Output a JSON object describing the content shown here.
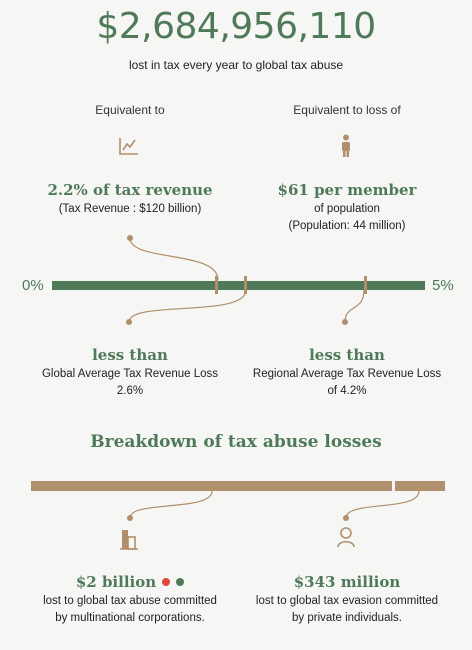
{
  "headline": {
    "amount": "$2,684,956,110",
    "subtitle": "lost in tax every year to global tax abuse"
  },
  "equivalents": {
    "left": {
      "heading": "Equivalent to",
      "icon": "chart-line-icon",
      "value": "2.2% of tax revenue",
      "detail": "(Tax Revenue : $120 billion)"
    },
    "right": {
      "heading": "Equivalent to loss of",
      "icon": "person-icon",
      "value": "$61 per member",
      "detail_line1": "of population",
      "detail_line2": "(Population: 44 million)"
    }
  },
  "scale": {
    "min_label": "0%",
    "max_label": "5%",
    "min": 0,
    "max": 5,
    "markers": [
      {
        "name": "country-loss",
        "percent": 2.2
      },
      {
        "name": "global-average",
        "percent": 2.6
      },
      {
        "name": "regional-average",
        "percent": 4.2
      }
    ]
  },
  "comparisons": {
    "global": {
      "title": "less than",
      "line1": "Global Average Tax Revenue Loss",
      "line2": "2.6%"
    },
    "regional": {
      "title": "less than",
      "line1": "Regional Average Tax Revenue Loss",
      "line2": "of 4.2%"
    }
  },
  "breakdown": {
    "title": "Breakdown of tax abuse losses",
    "corporate": {
      "icon": "building-icon",
      "value": "$2 billion",
      "line1": "lost to global tax abuse committed",
      "line2": "by multinational corporations.",
      "dot_colors": [
        "#e0483e",
        "#4f7a5a"
      ]
    },
    "private": {
      "icon": "user-outline-icon",
      "value": "$343 million",
      "line1": "lost to global tax evasion committed",
      "line2": "by private individuals."
    }
  },
  "colors": {
    "green": "#4f7a5a",
    "tan": "#b08f6c",
    "background": "#f6f6f4"
  }
}
